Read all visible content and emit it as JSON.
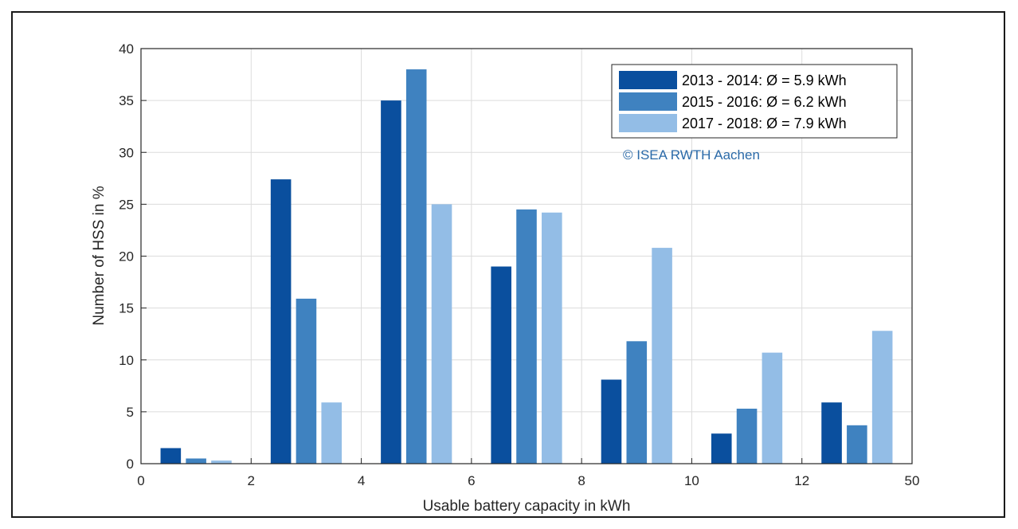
{
  "chart_data": {
    "type": "bar",
    "xlabel": "Usable battery capacity in kWh",
    "ylabel": "Number of HSS in %",
    "x_ticks": [
      "0",
      "2",
      "4",
      "6",
      "8",
      "10",
      "12",
      "50"
    ],
    "y_ticks": [
      "0",
      "5",
      "10",
      "15",
      "20",
      "25",
      "30",
      "35",
      "40"
    ],
    "ylim": [
      0,
      40
    ],
    "grid": true,
    "legend_position": "top-right",
    "group_centers": [
      1,
      3,
      5,
      7,
      9,
      11,
      13
    ],
    "series": [
      {
        "name": "2013 - 2014: Ø = 5.9 kWh",
        "color": "#0a4f9e",
        "values": [
          1.5,
          27.4,
          35,
          19,
          8.1,
          2.9,
          5.9
        ]
      },
      {
        "name": "2015 - 2016: Ø = 6.2 kWh",
        "color": "#3f82c0",
        "values": [
          0.5,
          15.9,
          38,
          24.5,
          11.8,
          5.3,
          3.7
        ]
      },
      {
        "name": "2017 - 2018: Ø = 7.9 kWh",
        "color": "#93bde6",
        "values": [
          0.3,
          5.9,
          25,
          24.2,
          20.8,
          10.7,
          12.8
        ]
      }
    ],
    "watermark": "© ISEA RWTH Aachen",
    "watermark_color": "#2b6aa8"
  }
}
